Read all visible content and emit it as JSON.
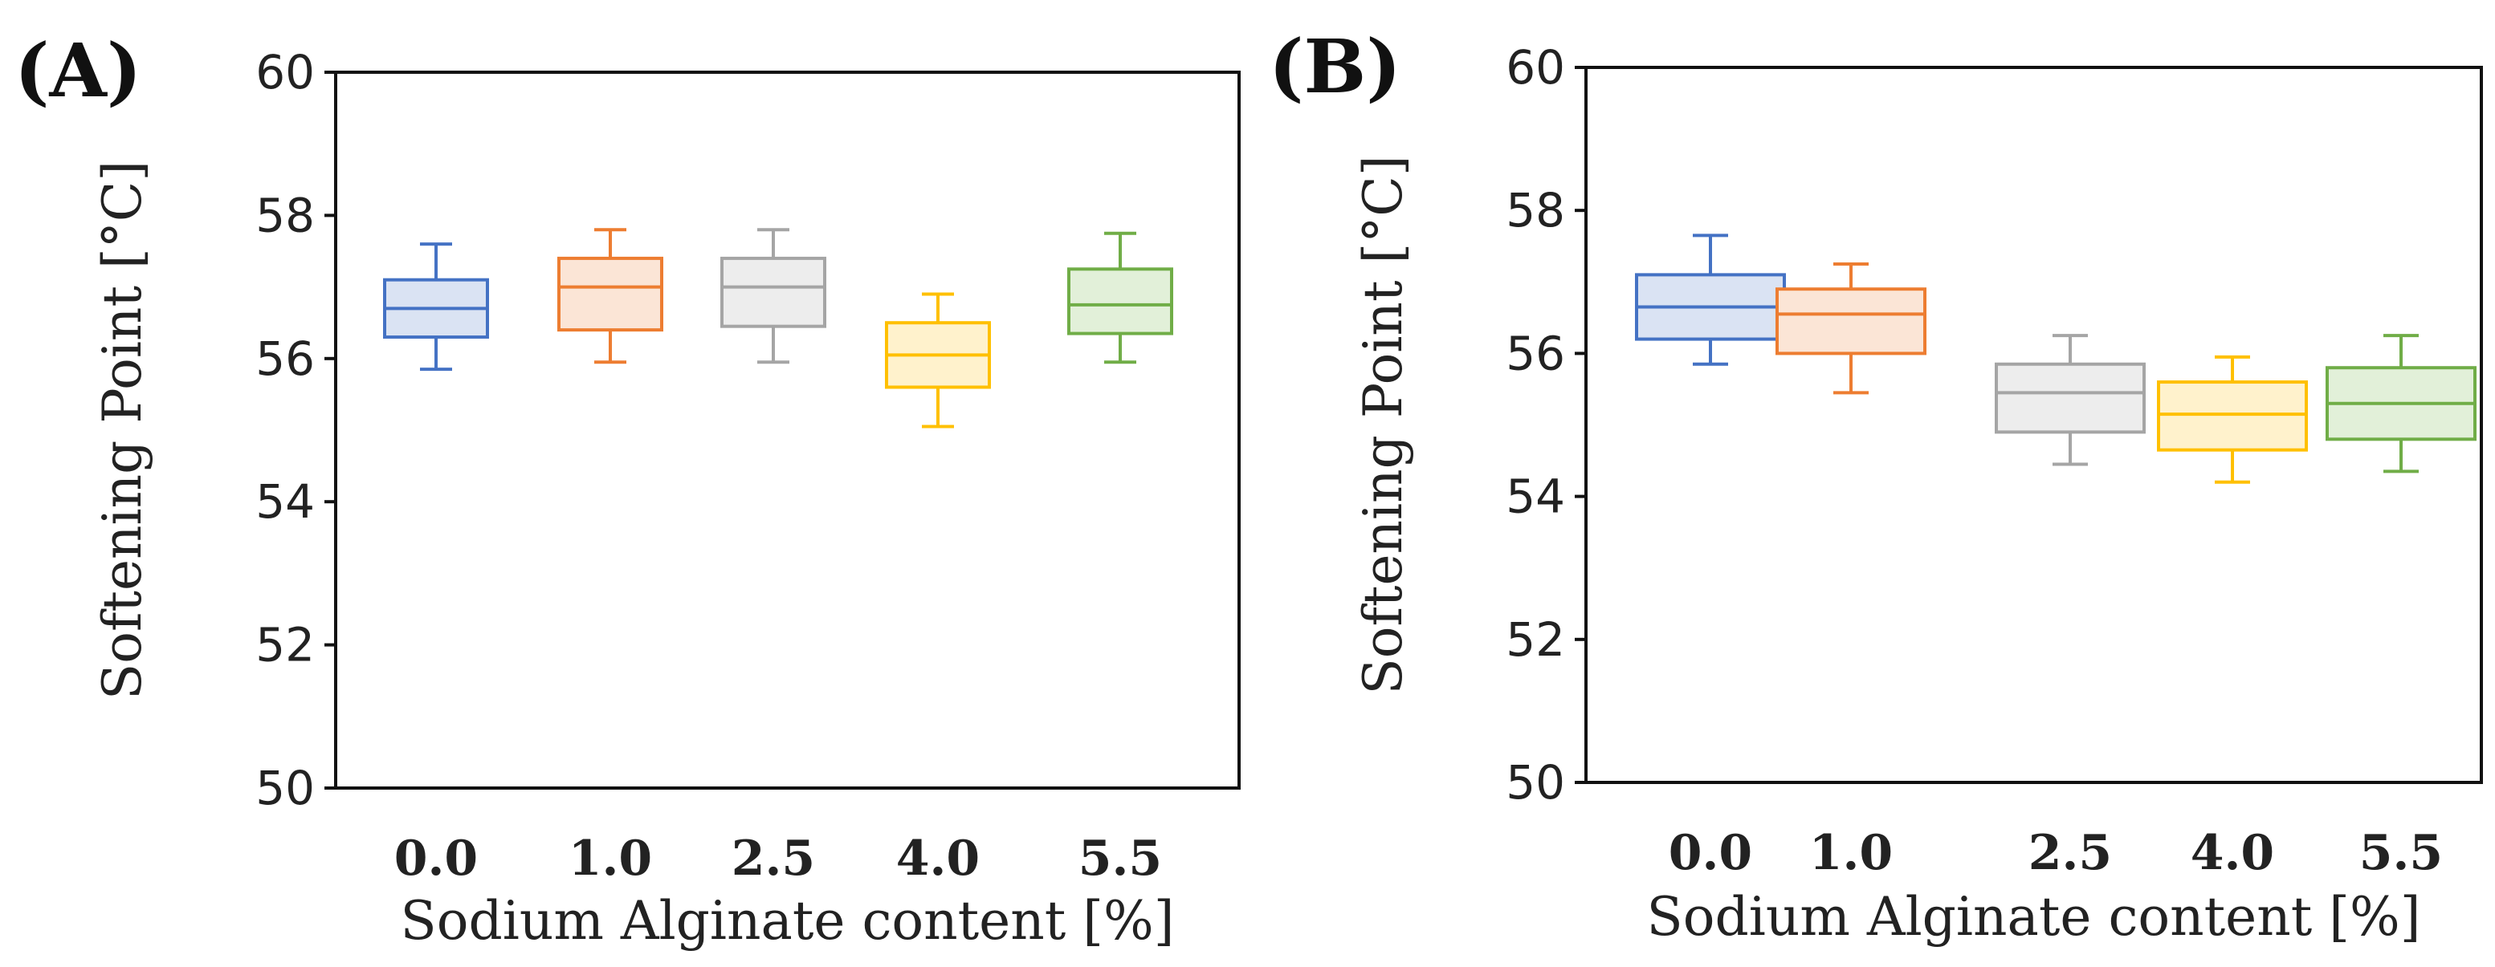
{
  "chart_data": [
    {
      "panel_label": "(A)",
      "type": "box",
      "xlabel": "Sodium Alginate content [%]",
      "ylabel": "Softening Point [°C]",
      "ylim": [
        50,
        60
      ],
      "yticks": [
        50,
        52,
        54,
        56,
        58,
        60
      ],
      "categories": [
        "0.0",
        "1.0",
        "2.5",
        "4.0",
        "5.5"
      ],
      "colors": [
        "#4472C4",
        "#ED7D31",
        "#A5A5A5",
        "#FFC000",
        "#70AD47"
      ],
      "fills": [
        "#DAE3F3",
        "#FBE5D6",
        "#EDEDED",
        "#FFF2CC",
        "#E2F0D9"
      ],
      "boxes": [
        {
          "min": 55.85,
          "q1": 56.3,
          "median": 56.7,
          "q3": 57.1,
          "max": 57.6
        },
        {
          "min": 55.95,
          "q1": 56.4,
          "median": 57.0,
          "q3": 57.4,
          "max": 57.8
        },
        {
          "min": 55.95,
          "q1": 56.45,
          "median": 57.0,
          "q3": 57.4,
          "max": 57.8
        },
        {
          "min": 55.05,
          "q1": 55.6,
          "median": 56.05,
          "q3": 56.5,
          "max": 56.9
        },
        {
          "min": 55.95,
          "q1": 56.35,
          "median": 56.75,
          "q3": 57.25,
          "max": 57.75
        }
      ]
    },
    {
      "panel_label": "(B)",
      "type": "box",
      "xlabel": "Sodium Alginate content [%]",
      "ylabel": "Softening Point [°C]",
      "ylim": [
        50,
        60
      ],
      "yticks": [
        50,
        52,
        54,
        56,
        58,
        60
      ],
      "categories": [
        "0.0",
        "1.0",
        "2.5",
        "4.0",
        "5.5"
      ],
      "colors": [
        "#4472C4",
        "#ED7D31",
        "#A5A5A5",
        "#FFC000",
        "#70AD47"
      ],
      "fills": [
        "#DAE3F3",
        "#FBE5D6",
        "#EDEDED",
        "#FFF2CC",
        "#E2F0D9"
      ],
      "boxes": [
        {
          "min": 55.85,
          "q1": 56.2,
          "median": 56.65,
          "q3": 57.1,
          "max": 57.65
        },
        {
          "min": 55.45,
          "q1": 56.0,
          "median": 56.55,
          "q3": 56.9,
          "max": 57.25
        },
        {
          "min": 54.45,
          "q1": 54.9,
          "median": 55.45,
          "q3": 55.85,
          "max": 56.25
        },
        {
          "min": 54.2,
          "q1": 54.65,
          "median": 55.15,
          "q3": 55.6,
          "max": 55.95
        },
        {
          "min": 54.35,
          "q1": 54.8,
          "median": 55.3,
          "q3": 55.8,
          "max": 56.25
        }
      ]
    }
  ]
}
